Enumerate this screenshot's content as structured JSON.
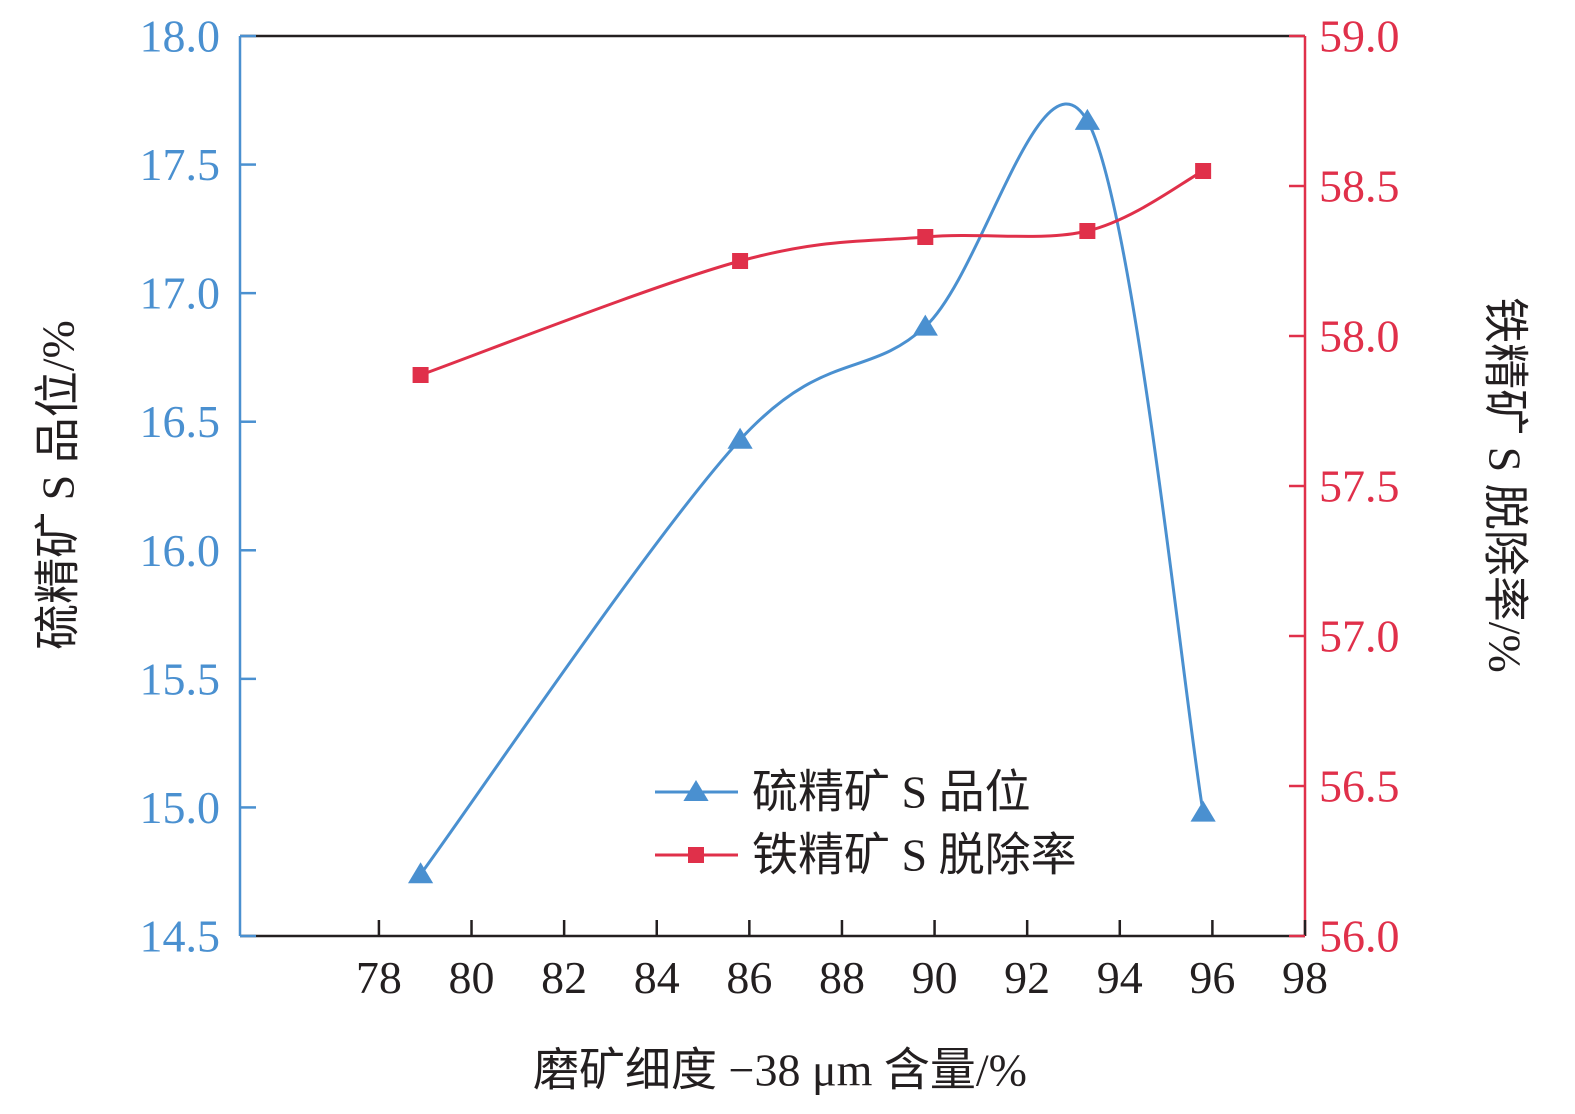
{
  "chart_data": {
    "type": "line",
    "xlabel": "磨矿细度 −38 μm 含量/%",
    "ylabel_left": "硫精矿 S 品位/%",
    "ylabel_right": "铁精矿 S 脱除率/%",
    "xlim": [
      75,
      98
    ],
    "xticks": [
      "78",
      "80",
      "82",
      "84",
      "86",
      "88",
      "90",
      "92",
      "94",
      "96",
      "98"
    ],
    "ylim_left": [
      14.5,
      18.0
    ],
    "yticks_left": [
      "14.5",
      "15.0",
      "15.5",
      "16.0",
      "16.5",
      "17.0",
      "17.5",
      "18.0"
    ],
    "ylim_right": [
      56.0,
      59.0
    ],
    "yticks_right": [
      "56.0",
      "56.5",
      "57.0",
      "57.5",
      "58.0",
      "58.5",
      "59.0"
    ],
    "grid": false,
    "legend_position": "bottom-center",
    "series": [
      {
        "name": "硫精矿 S 品位",
        "axis": "left",
        "marker": "triangle",
        "color": "#4a90d0",
        "x": [
          78.9,
          85.8,
          89.8,
          93.3,
          95.8
        ],
        "y": [
          14.74,
          16.43,
          16.87,
          17.67,
          14.98
        ]
      },
      {
        "name": "铁精矿 S 脱除率",
        "axis": "right",
        "marker": "square",
        "color": "#e0304a",
        "x": [
          78.9,
          85.8,
          89.8,
          93.3,
          95.8
        ],
        "y": [
          57.87,
          58.25,
          58.33,
          58.35,
          58.55
        ]
      }
    ]
  },
  "colors": {
    "left_axis": "#4a90d0",
    "right_axis": "#e0304a",
    "text": "#231f20"
  }
}
